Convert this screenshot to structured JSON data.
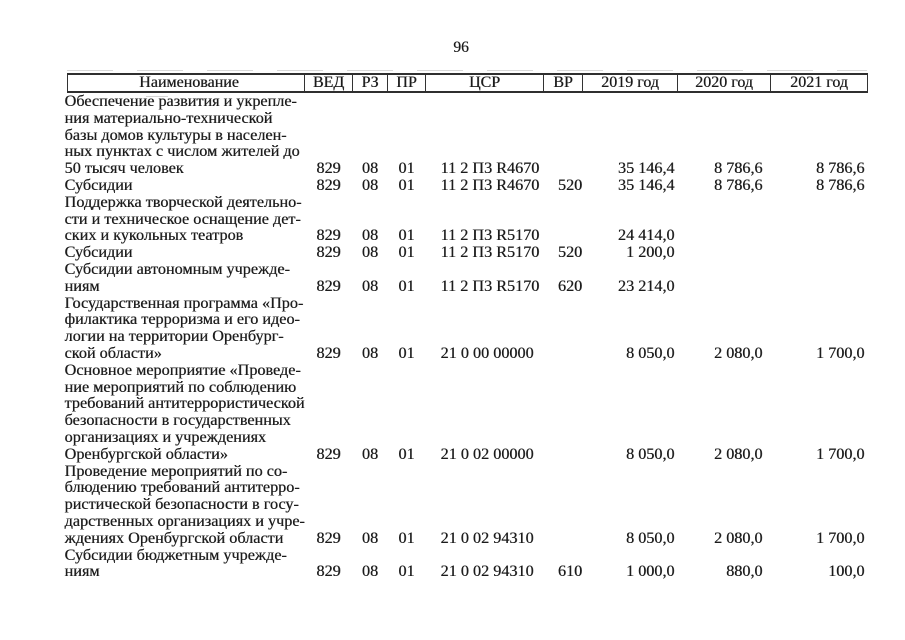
{
  "page": {
    "number": "96"
  },
  "colors": {
    "text": "#1b1b1b",
    "border": "#2b2b2b",
    "background": "#ffffff"
  },
  "table": {
    "headers": [
      "Наименование",
      "ВЕД",
      "РЗ",
      "ПР",
      "ЦСР",
      "ВР",
      "2019 год",
      "2020 год",
      "2021 год"
    ],
    "lines": [
      [
        "Обеспечение развития и укрепле-",
        "",
        "",
        "",
        "",
        "",
        "",
        "",
        ""
      ],
      [
        "ния материально-технической",
        "",
        "",
        "",
        "",
        "",
        "",
        "",
        ""
      ],
      [
        "базы домов культуры в населен-",
        "",
        "",
        "",
        "",
        "",
        "",
        "",
        ""
      ],
      [
        "ных пунктах с числом жителей до",
        "",
        "",
        "",
        "",
        "",
        "",
        "",
        ""
      ],
      [
        "50 тысяч человек",
        "829",
        "08",
        "01",
        "11 2 П3 R4670",
        "",
        "35 146,4",
        "8 786,6",
        "8 786,6"
      ],
      [
        "Субсидии",
        "829",
        "08",
        "01",
        "11 2 П3 R4670",
        "520",
        "35 146,4",
        "8 786,6",
        "8 786,6"
      ],
      [
        "Поддержка творческой деятельно-",
        "",
        "",
        "",
        "",
        "",
        "",
        "",
        ""
      ],
      [
        "сти и техническое оснащение дет-",
        "",
        "",
        "",
        "",
        "",
        "",
        "",
        ""
      ],
      [
        "ских и кукольных театров",
        "829",
        "08",
        "01",
        "11 2 П3 R5170",
        "",
        "24 414,0",
        "",
        ""
      ],
      [
        "Субсидии",
        "829",
        "08",
        "01",
        "11 2 П3 R5170",
        "520",
        "1 200,0",
        "",
        ""
      ],
      [
        "Субсидии автономным учрежде-",
        "",
        "",
        "",
        "",
        "",
        "",
        "",
        ""
      ],
      [
        "ниям",
        "829",
        "08",
        "01",
        "11 2 П3 R5170",
        "620",
        "23 214,0",
        "",
        ""
      ],
      [
        "Государственная программа «Про-",
        "",
        "",
        "",
        "",
        "",
        "",
        "",
        ""
      ],
      [
        "филактика терроризма и его идео-",
        "",
        "",
        "",
        "",
        "",
        "",
        "",
        ""
      ],
      [
        "логии на территории Оренбург-",
        "",
        "",
        "",
        "",
        "",
        "",
        "",
        ""
      ],
      [
        "ской области»",
        "829",
        "08",
        "01",
        "21 0 00 00000",
        "",
        "8 050,0",
        "2 080,0",
        "1 700,0"
      ],
      [
        "Основное мероприятие «Проведе-",
        "",
        "",
        "",
        "",
        "",
        "",
        "",
        ""
      ],
      [
        "ние мероприятий по соблюдению",
        "",
        "",
        "",
        "",
        "",
        "",
        "",
        ""
      ],
      [
        "требований антитеррористической",
        "",
        "",
        "",
        "",
        "",
        "",
        "",
        ""
      ],
      [
        "безопасности в государственных",
        "",
        "",
        "",
        "",
        "",
        "",
        "",
        ""
      ],
      [
        "организациях и учреждениях",
        "",
        "",
        "",
        "",
        "",
        "",
        "",
        ""
      ],
      [
        "Оренбургской области»",
        "829",
        "08",
        "01",
        "21 0 02 00000",
        "",
        "8 050,0",
        "2 080,0",
        "1 700,0"
      ],
      [
        "Проведение мероприятий по со-",
        "",
        "",
        "",
        "",
        "",
        "",
        "",
        ""
      ],
      [
        "блюдению требований антитерро-",
        "",
        "",
        "",
        "",
        "",
        "",
        "",
        ""
      ],
      [
        "ристической безопасности в госу-",
        "",
        "",
        "",
        "",
        "",
        "",
        "",
        ""
      ],
      [
        "дарственных организациях и учре-",
        "",
        "",
        "",
        "",
        "",
        "",
        "",
        ""
      ],
      [
        "ждениях Оренбургской области",
        "829",
        "08",
        "01",
        "21 0 02 94310",
        "",
        "8 050,0",
        "2 080,0",
        "1 700,0"
      ],
      [
        "Субсидии бюджетным учрежде-",
        "",
        "",
        "",
        "",
        "",
        "",
        "",
        ""
      ],
      [
        "ниям",
        "829",
        "08",
        "01",
        "21 0 02 94310",
        "610",
        "1 000,0",
        "880,0",
        "100,0"
      ]
    ]
  }
}
